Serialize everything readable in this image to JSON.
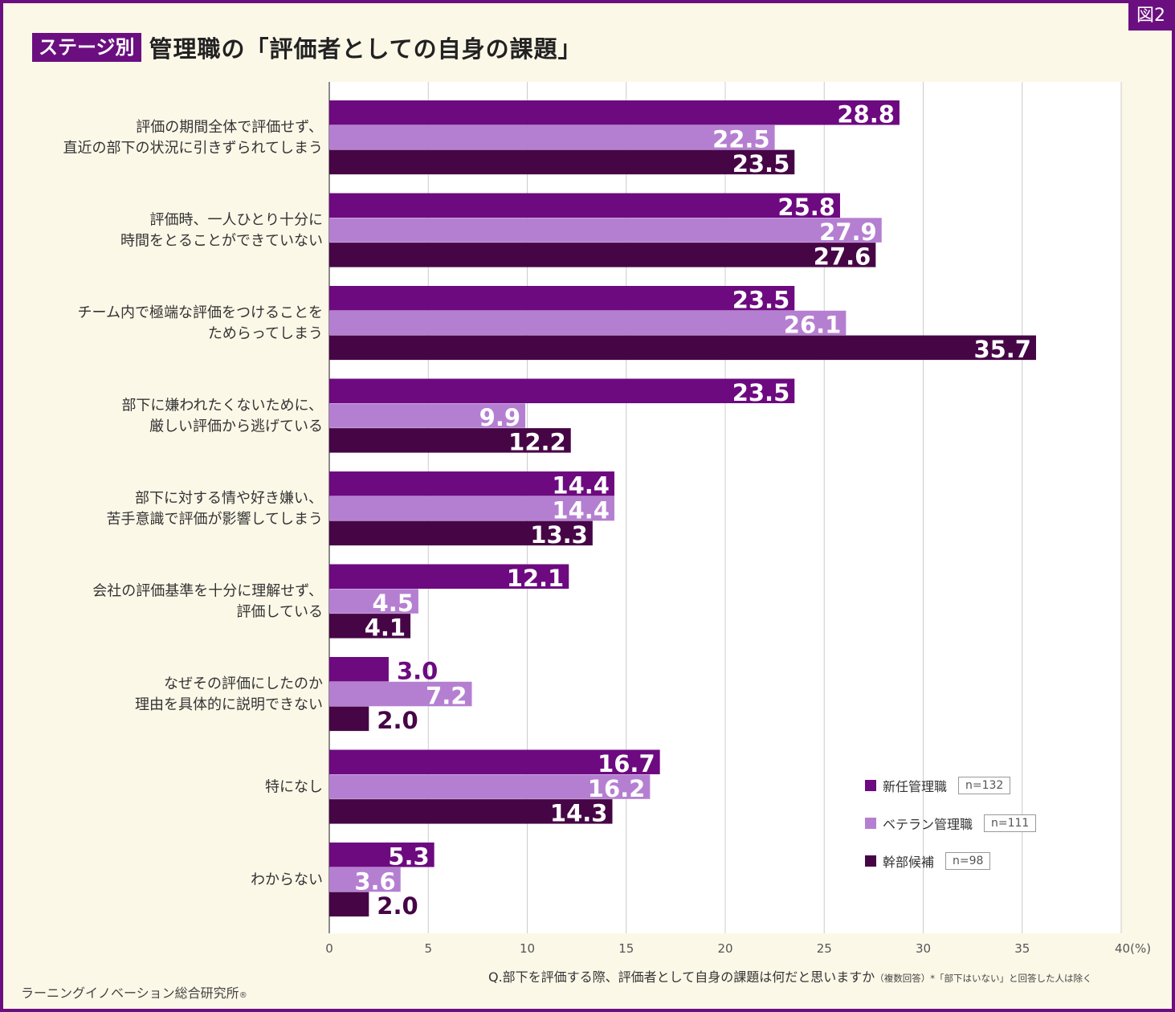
{
  "figure_tag": "図2",
  "stage_badge": "ステージ別",
  "title": "管理職の「評価者としての自身の課題」",
  "question": "Q.部下を評価する際、評価者として自身の課題は何だと思いますか",
  "question_note": "（複数回答）*「部下はいない」と回答した人は除く",
  "company": "ラーニングイノベーション総合研究所",
  "company_mark": "®",
  "colors": {
    "series1": "#6d0a80",
    "series2": "#b57fd1",
    "series3": "#460646",
    "grid": "#cccccc",
    "background": "#fcf8e8"
  },
  "chart_data": {
    "type": "bar",
    "orientation": "horizontal",
    "categories": [
      "評価の期間全体で評価せず、\n直近の部下の状況に引きずられてしまう",
      "評価時、一人ひとり十分に\n時間をとることができていない",
      "チーム内で極端な評価をつけることを\nためらってしまう",
      "部下に嫌われたくないために、\n厳しい評価から逃げている",
      "部下に対する情や好き嫌い、\n苦手意識で評価が影響してしまう",
      "会社の評価基準を十分に理解せず、\n評価している",
      "なぜその評価にしたのか\n理由を具体的に説明できない",
      "特になし",
      "わからない"
    ],
    "series": [
      {
        "name": "新任管理職",
        "n": "n=132",
        "values": [
          28.8,
          25.8,
          23.5,
          23.5,
          14.4,
          12.1,
          3.0,
          16.7,
          5.3
        ]
      },
      {
        "name": "ベテラン管理職",
        "n": "n=111",
        "values": [
          22.5,
          27.9,
          26.1,
          9.9,
          14.4,
          4.5,
          7.2,
          16.2,
          3.6
        ]
      },
      {
        "name": "幹部候補",
        "n": "n=98",
        "values": [
          23.5,
          27.6,
          35.7,
          12.2,
          13.3,
          4.1,
          2.0,
          14.3,
          2.0
        ]
      }
    ],
    "xlim": [
      0,
      40
    ],
    "xticks": [
      "0",
      "5",
      "10",
      "15",
      "20",
      "25",
      "30",
      "35",
      "40(%)"
    ],
    "grid": true,
    "legend_position": "bottom-right"
  }
}
